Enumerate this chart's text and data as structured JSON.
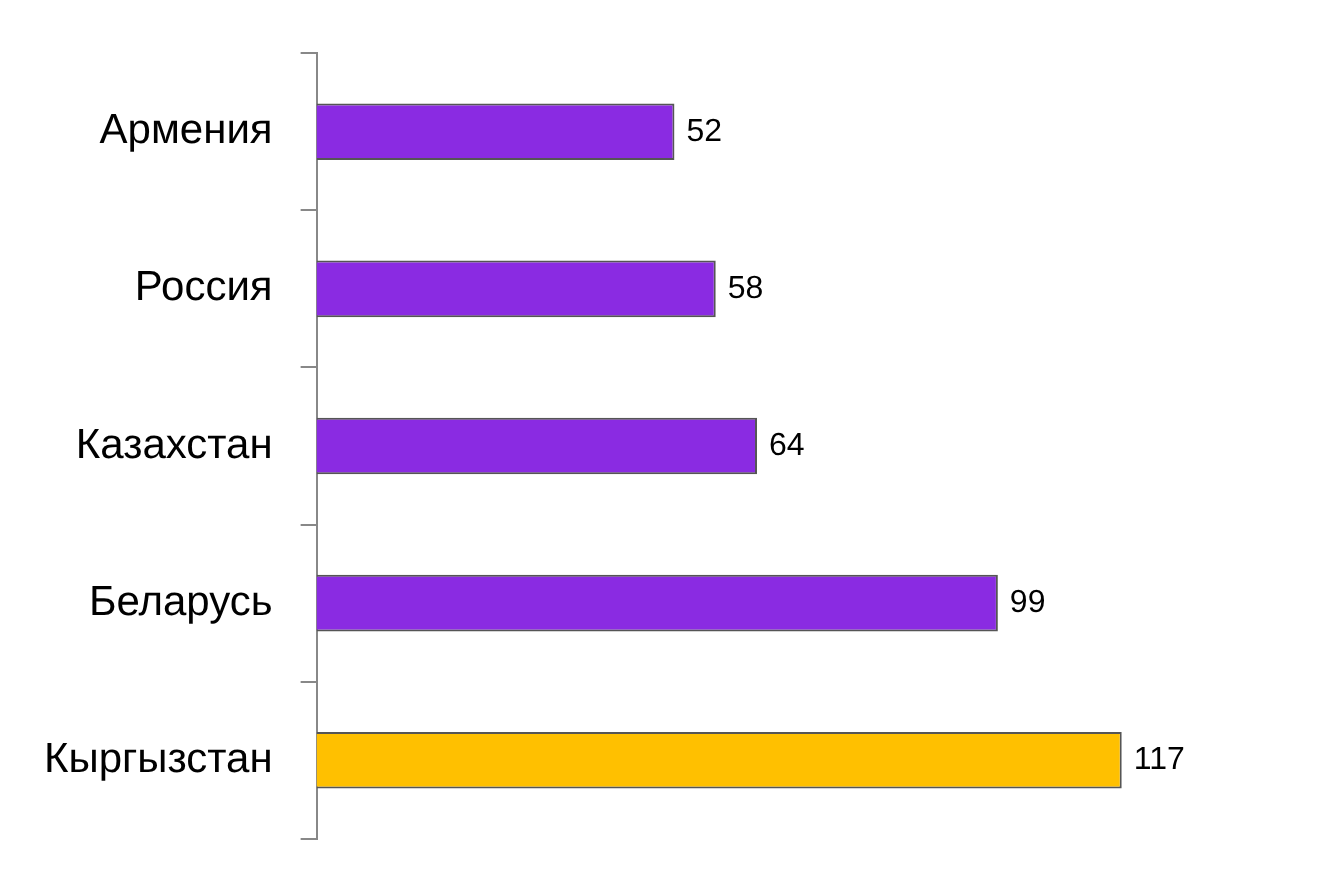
{
  "chart_data": {
    "type": "bar",
    "orientation": "horizontal",
    "categories": [
      "Армения",
      "Россия",
      "Казахстан",
      "Беларусь",
      "Кыргызстан"
    ],
    "values": [
      52,
      58,
      64,
      99,
      117
    ],
    "colors": [
      "#8a2be2",
      "#8a2be2",
      "#8a2be2",
      "#8a2be2",
      "#ffc000"
    ],
    "data_labels": true,
    "tick_labels": "y",
    "legend": false
  }
}
